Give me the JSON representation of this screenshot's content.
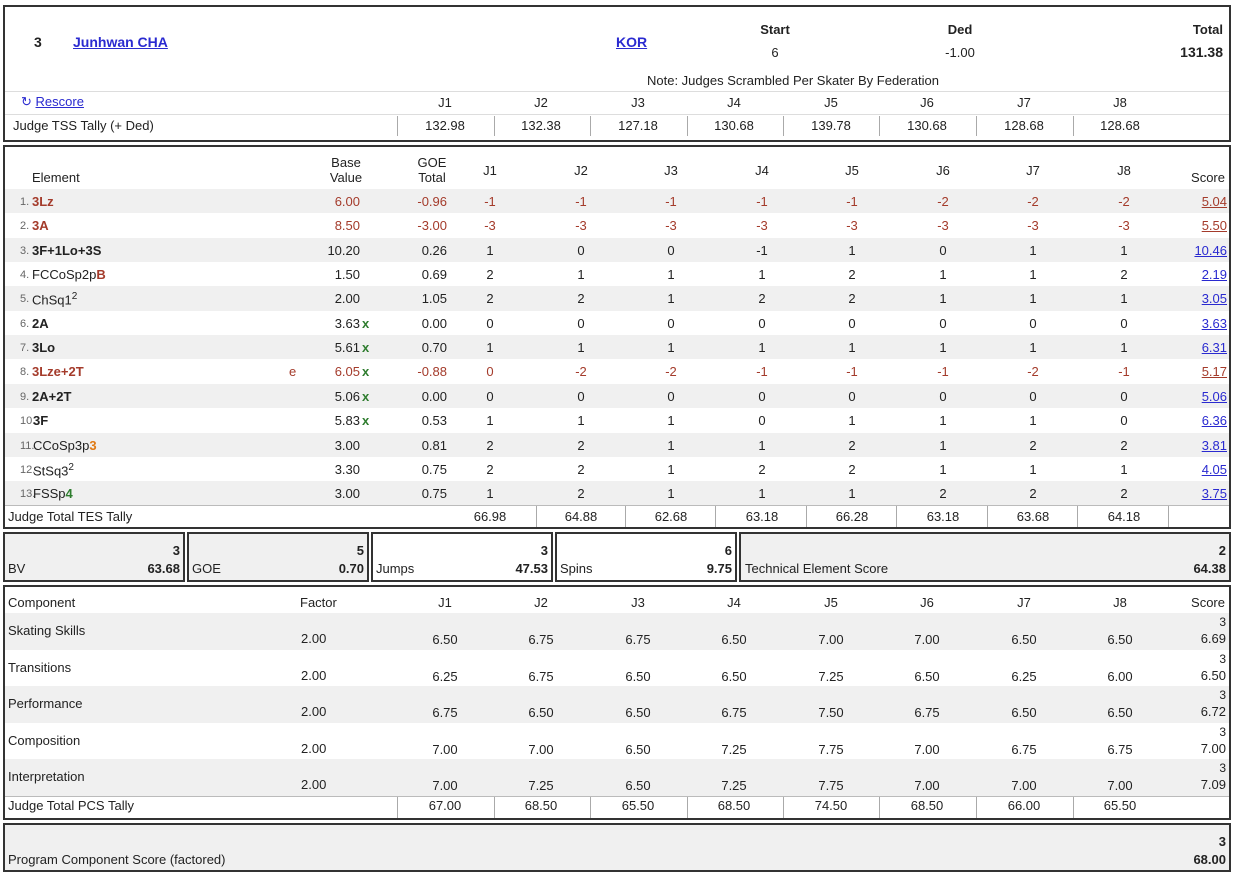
{
  "header": {
    "rank": "3",
    "name": "Junhwan CHA",
    "nation": "KOR",
    "start_label": "Start",
    "start": "6",
    "ded_label": "Ded",
    "ded": "-1.00",
    "total_label": "Total",
    "total": "131.38",
    "note": "Note: Judges Scrambled Per Skater By Federation",
    "rescore": "Rescore",
    "tss_label": "Judge TSS Tally (+ Ded)",
    "judges": [
      "J1",
      "J2",
      "J3",
      "J4",
      "J5",
      "J6",
      "J7",
      "J8"
    ],
    "tss": [
      "132.98",
      "132.38",
      "127.18",
      "130.68",
      "139.78",
      "130.68",
      "128.68",
      "128.68"
    ]
  },
  "elements_header": {
    "element": "Element",
    "base": "Base\nValue",
    "goe": "GOE\nTotal",
    "judges": [
      "J1",
      "J2",
      "J3",
      "J4",
      "J5",
      "J6",
      "J7",
      "J8"
    ],
    "score": "Score"
  },
  "elements": [
    {
      "num": "1.",
      "name": "3Lz",
      "bv": "6.00",
      "goe": "-0.96",
      "j": [
        "-1",
        "-1",
        "-1",
        "-1",
        "-1",
        "-2",
        "-2",
        "-2"
      ],
      "score": "5.04"
    },
    {
      "num": "2.",
      "name": "3A",
      "bv": "8.50",
      "goe": "-3.00",
      "j": [
        "-3",
        "-3",
        "-3",
        "-3",
        "-3",
        "-3",
        "-3",
        "-3"
      ],
      "score": "5.50"
    },
    {
      "num": "3.",
      "name": "3F+1Lo+3S",
      "bv": "10.20",
      "goe": "0.26",
      "j": [
        "1",
        "0",
        "0",
        "-1",
        "1",
        "0",
        "1",
        "1"
      ],
      "score": "10.46"
    },
    {
      "num": "4.",
      "name": "FCCoSp2p",
      "suffix": "B",
      "bv": "1.50",
      "goe": "0.69",
      "j": [
        "2",
        "1",
        "1",
        "1",
        "2",
        "1",
        "1",
        "2"
      ],
      "score": "2.19"
    },
    {
      "num": "5.",
      "name": "ChSq1",
      "sup": "2",
      "bv": "2.00",
      "goe": "1.05",
      "j": [
        "2",
        "2",
        "1",
        "2",
        "2",
        "1",
        "1",
        "1"
      ],
      "score": "3.05"
    },
    {
      "num": "6.",
      "name": "2A",
      "bv": "3.63",
      "x": "x",
      "goe": "0.00",
      "j": [
        "0",
        "0",
        "0",
        "0",
        "0",
        "0",
        "0",
        "0"
      ],
      "score": "3.63"
    },
    {
      "num": "7.",
      "name": "3Lo",
      "bv": "5.61",
      "x": "x",
      "goe": "0.70",
      "j": [
        "1",
        "1",
        "1",
        "1",
        "1",
        "1",
        "1",
        "1"
      ],
      "score": "6.31"
    },
    {
      "num": "8.",
      "name": "3Lze+2T",
      "info": "e",
      "bv": "6.05",
      "x": "x",
      "goe": "-0.88",
      "j": [
        "0",
        "-2",
        "-2",
        "-1",
        "-1",
        "-1",
        "-2",
        "-1"
      ],
      "score": "5.17"
    },
    {
      "num": "9.",
      "name": "2A+2T",
      "bv": "5.06",
      "x": "x",
      "goe": "0.00",
      "j": [
        "0",
        "0",
        "0",
        "0",
        "0",
        "0",
        "0",
        "0"
      ],
      "score": "5.06"
    },
    {
      "num": "10.",
      "name": "3F",
      "bv": "5.83",
      "x": "x",
      "goe": "0.53",
      "j": [
        "1",
        "1",
        "1",
        "0",
        "1",
        "1",
        "1",
        "0"
      ],
      "score": "6.36"
    },
    {
      "num": "11.",
      "name": "CCoSp3p",
      "suffix": "3",
      "bv": "3.00",
      "goe": "0.81",
      "j": [
        "2",
        "2",
        "1",
        "1",
        "2",
        "1",
        "2",
        "2"
      ],
      "score": "3.81"
    },
    {
      "num": "12.",
      "name": "StSq3",
      "sup": "2",
      "bv": "3.30",
      "goe": "0.75",
      "j": [
        "2",
        "2",
        "1",
        "2",
        "2",
        "1",
        "1",
        "1"
      ],
      "score": "4.05"
    },
    {
      "num": "13.",
      "name": "FSSp",
      "suffix": "4",
      "bv": "3.00",
      "goe": "0.75",
      "j": [
        "1",
        "2",
        "1",
        "1",
        "1",
        "2",
        "2",
        "2"
      ],
      "score": "3.75"
    }
  ],
  "tes_tally": {
    "label": "Judge Total TES Tally",
    "values": [
      "66.98",
      "64.88",
      "62.68",
      "63.18",
      "66.28",
      "63.18",
      "63.68",
      "64.18"
    ]
  },
  "summary": {
    "bv": {
      "label": "BV",
      "rank": "3",
      "value": "63.68"
    },
    "goe": {
      "label": "GOE",
      "rank": "5",
      "value": "0.70"
    },
    "jumps": {
      "label": "Jumps",
      "rank": "3",
      "value": "47.53"
    },
    "spins": {
      "label": "Spins",
      "rank": "6",
      "value": "9.75"
    },
    "tes": {
      "label": "Technical Element Score",
      "rank": "2",
      "value": "64.38"
    }
  },
  "components_header": {
    "component": "Component",
    "factor": "Factor",
    "judges": [
      "J1",
      "J2",
      "J3",
      "J4",
      "J5",
      "J6",
      "J7",
      "J8"
    ],
    "score": "Score"
  },
  "components": [
    {
      "name": "Skating Skills",
      "factor": "2.00",
      "j": [
        "6.50",
        "6.75",
        "6.75",
        "6.50",
        "7.00",
        "7.00",
        "6.50",
        "6.50"
      ],
      "rank": "3",
      "score": "6.69"
    },
    {
      "name": "Transitions",
      "factor": "2.00",
      "j": [
        "6.25",
        "6.75",
        "6.50",
        "6.50",
        "7.25",
        "6.50",
        "6.25",
        "6.00"
      ],
      "rank": "3",
      "score": "6.50"
    },
    {
      "name": "Performance",
      "factor": "2.00",
      "j": [
        "6.75",
        "6.50",
        "6.50",
        "6.75",
        "7.50",
        "6.75",
        "6.50",
        "6.50"
      ],
      "rank": "3",
      "score": "6.72"
    },
    {
      "name": "Composition",
      "factor": "2.00",
      "j": [
        "7.00",
        "7.00",
        "6.50",
        "7.25",
        "7.75",
        "7.00",
        "6.75",
        "6.75"
      ],
      "rank": "3",
      "score": "7.00"
    },
    {
      "name": "Interpretation",
      "factor": "2.00",
      "j": [
        "7.00",
        "7.25",
        "6.50",
        "7.25",
        "7.75",
        "7.00",
        "7.00",
        "7.00"
      ],
      "rank": "3",
      "score": "7.09"
    }
  ],
  "pcs_tally": {
    "label": "Judge Total PCS Tally",
    "values": [
      "67.00",
      "68.50",
      "65.50",
      "68.50",
      "74.50",
      "68.50",
      "66.00",
      "65.50"
    ]
  },
  "pcs": {
    "label": "Program Component Score (factored)",
    "rank": "3",
    "value": "68.00"
  }
}
